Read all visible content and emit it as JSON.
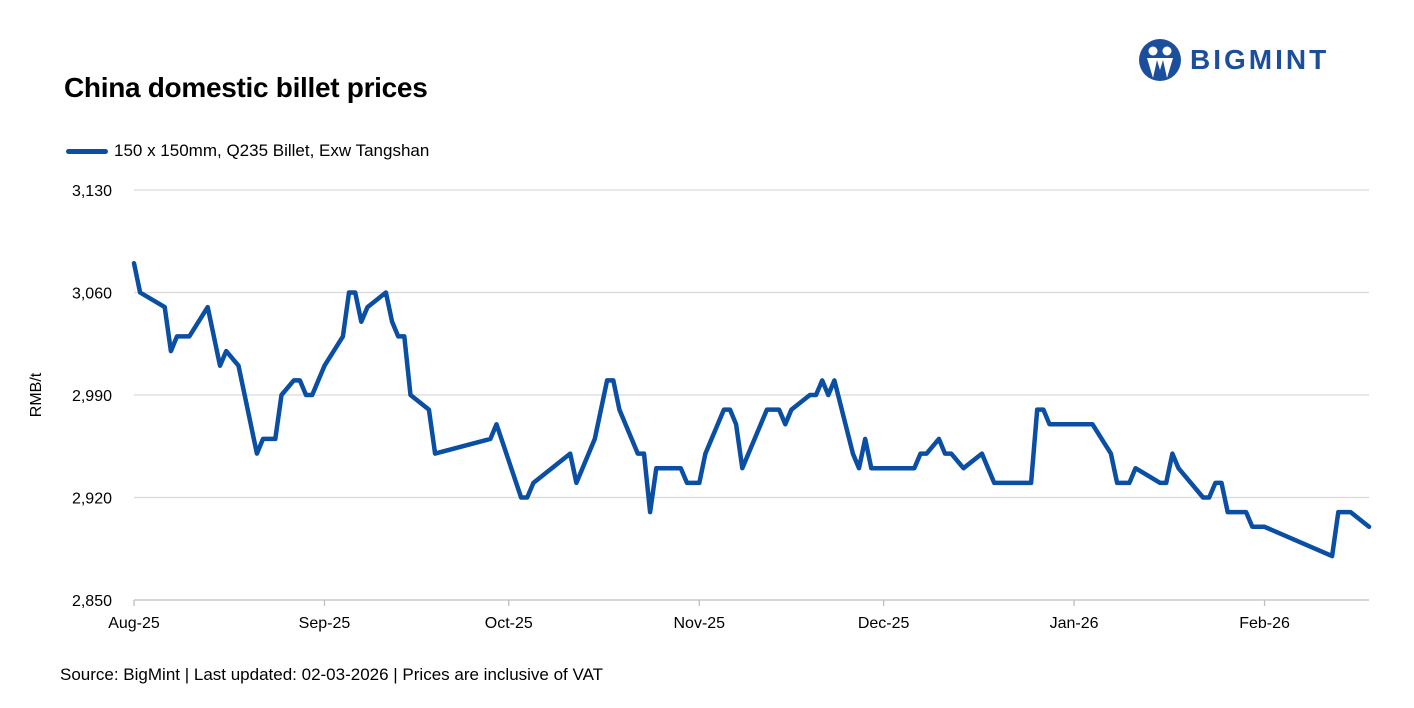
{
  "logo": {
    "text": "BIGMINT",
    "color": "#1b4f9c"
  },
  "footer": {
    "source": "Source: BigMint | Last updated: 02-03-2026 | Prices are inclusive of VAT"
  },
  "chart_data": {
    "type": "line",
    "title": "China domestic billet prices",
    "xlabel": "",
    "ylabel": "RMB/t",
    "ylim": [
      2850,
      3130
    ],
    "yticks": [
      2850,
      2920,
      2990,
      3060,
      3130
    ],
    "ytick_labels": [
      "2,850",
      "2,920",
      "2,990",
      "3,060",
      "3,130"
    ],
    "xlim": [
      "2025-08-01",
      "2026-02-18"
    ],
    "xticks": [
      "2025-08-01",
      "2025-09-01",
      "2025-10-01",
      "2025-11-01",
      "2025-12-01",
      "2026-01-01",
      "2026-02-01"
    ],
    "xtick_labels": [
      "Aug-25",
      "Sep-25",
      "Oct-25",
      "Nov-25",
      "Dec-25",
      "Jan-26",
      "Feb-26"
    ],
    "grid": "horizontal",
    "legend": "top-left",
    "series": [
      {
        "name": "150 x 150mm, Q235 Billet, Exw Tangshan",
        "color": "#0a4fa3",
        "x": [
          "2025-08-01",
          "2025-08-02",
          "2025-08-06",
          "2025-08-07",
          "2025-08-08",
          "2025-08-10",
          "2025-08-13",
          "2025-08-15",
          "2025-08-16",
          "2025-08-18",
          "2025-08-21",
          "2025-08-22",
          "2025-08-24",
          "2025-08-25",
          "2025-08-27",
          "2025-08-28",
          "2025-08-29",
          "2025-08-30",
          "2025-09-01",
          "2025-09-04",
          "2025-09-05",
          "2025-09-06",
          "2025-09-07",
          "2025-09-08",
          "2025-09-11",
          "2025-09-12",
          "2025-09-13",
          "2025-09-14",
          "2025-09-15",
          "2025-09-18",
          "2025-09-19",
          "2025-09-28",
          "2025-09-29",
          "2025-10-03",
          "2025-10-04",
          "2025-10-05",
          "2025-10-11",
          "2025-10-12",
          "2025-10-15",
          "2025-10-17",
          "2025-10-18",
          "2025-10-19",
          "2025-10-22",
          "2025-10-23",
          "2025-10-24",
          "2025-10-25",
          "2025-10-29",
          "2025-10-30",
          "2025-11-01",
          "2025-11-02",
          "2025-11-05",
          "2025-11-06",
          "2025-11-07",
          "2025-11-08",
          "2025-11-12",
          "2025-11-14",
          "2025-11-15",
          "2025-11-16",
          "2025-11-19",
          "2025-11-20",
          "2025-11-21",
          "2025-11-22",
          "2025-11-23",
          "2025-11-26",
          "2025-11-27",
          "2025-11-28",
          "2025-11-29",
          "2025-12-06",
          "2025-12-07",
          "2025-12-08",
          "2025-12-10",
          "2025-12-11",
          "2025-12-12",
          "2025-12-14",
          "2025-12-17",
          "2025-12-19",
          "2025-12-25",
          "2025-12-26",
          "2025-12-27",
          "2025-12-28",
          "2026-01-04",
          "2026-01-07",
          "2026-01-08",
          "2026-01-10",
          "2026-01-11",
          "2026-01-15",
          "2026-01-16",
          "2026-01-17",
          "2026-01-18",
          "2026-01-22",
          "2026-01-23",
          "2026-01-24",
          "2026-01-25",
          "2026-01-26",
          "2026-01-29",
          "2026-01-30",
          "2026-02-01",
          "2026-02-12",
          "2026-02-13",
          "2026-02-15",
          "2026-02-18"
        ],
        "y": [
          3080,
          3060,
          3050,
          3020,
          3030,
          3030,
          3050,
          3010,
          3020,
          3010,
          2950,
          2960,
          2960,
          2990,
          3000,
          3000,
          2990,
          2990,
          3010,
          3030,
          3060,
          3060,
          3040,
          3050,
          3060,
          3040,
          3030,
          3030,
          2990,
          2980,
          2950,
          2960,
          2970,
          2920,
          2920,
          2930,
          2950,
          2930,
          2960,
          3000,
          3000,
          2980,
          2950,
          2950,
          2910,
          2940,
          2940,
          2930,
          2930,
          2950,
          2980,
          2980,
          2970,
          2940,
          2980,
          2980,
          2970,
          2980,
          2990,
          2990,
          3000,
          2990,
          3000,
          2950,
          2940,
          2960,
          2940,
          2940,
          2950,
          2950,
          2960,
          2950,
          2950,
          2940,
          2950,
          2930,
          2930,
          2980,
          2980,
          2970,
          2970,
          2950,
          2930,
          2930,
          2940,
          2930,
          2930,
          2950,
          2940,
          2920,
          2920,
          2930,
          2930,
          2910,
          2910,
          2900,
          2900,
          2880,
          2910,
          2910,
          2900
        ]
      }
    ]
  }
}
